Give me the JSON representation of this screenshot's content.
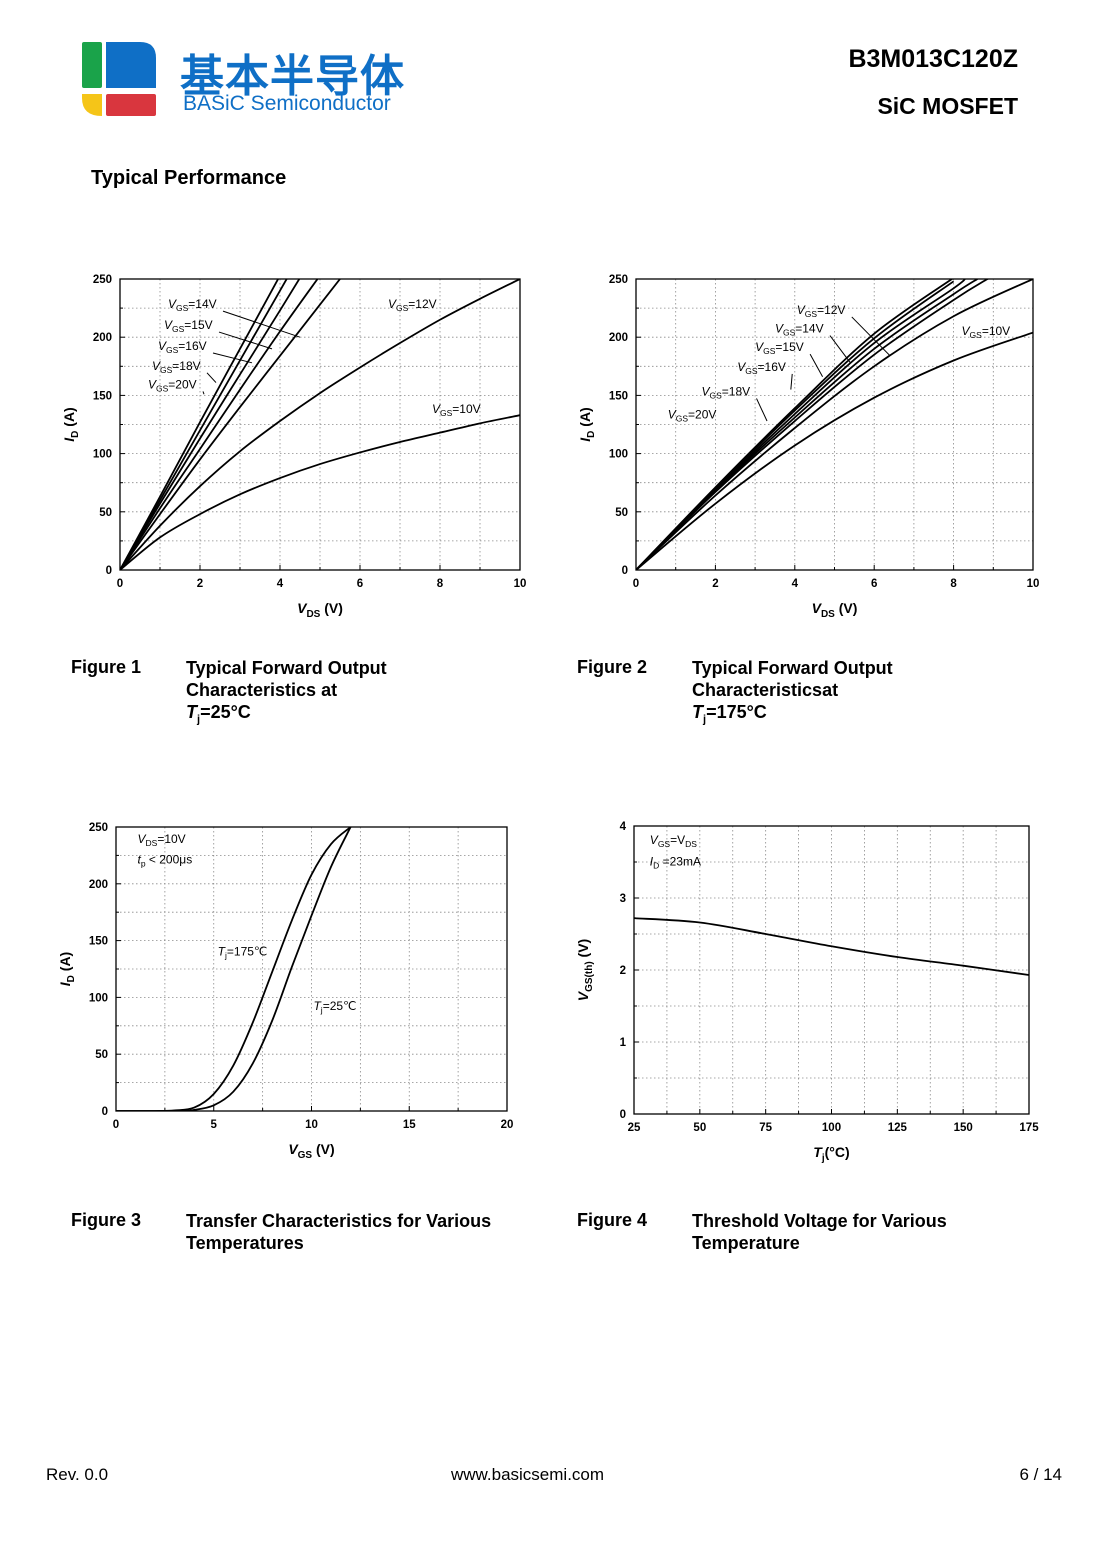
{
  "header": {
    "company_cn": "基本半导体",
    "company_en": "BASiC Semiconductor",
    "part_number": "B3M013C120Z",
    "product_type": "SiC MOSFET",
    "logo_colors": [
      "#1aa34a",
      "#0f6fc6",
      "#f5c518",
      "#d9363e"
    ]
  },
  "section_title": "Typical Performance",
  "footer": {
    "revision": "Rev. 0.0",
    "website": "www.basicsemi.com",
    "page": "6 / 14"
  },
  "figures": [
    {
      "number": "Figure 1",
      "title_lines": [
        "Typical Forward Output",
        "Characteristics at"
      ],
      "cond_var": "T",
      "cond_sub": "j",
      "cond_val": "=25°C"
    },
    {
      "number": "Figure 2",
      "title_lines": [
        "Typical Forward Output",
        "Characteristicsat"
      ],
      "cond_var": "T",
      "cond_sub": "j",
      "cond_val": "=175°C"
    },
    {
      "number": "Figure 3",
      "title_lines": [
        "Transfer Characteristics for Various",
        "Temperatures"
      ]
    },
    {
      "number": "Figure 4",
      "title_lines": [
        "Threshold Voltage for Various",
        "Temperature"
      ]
    }
  ],
  "chart_data": [
    {
      "type": "line",
      "x_label": {
        "var": "V",
        "sub": "DS",
        "unit": " (V)"
      },
      "y_label": {
        "var": "I",
        "sub": "D",
        "unit": " (A)"
      },
      "xlim": [
        0,
        10
      ],
      "ylim": [
        0,
        250
      ],
      "x_ticks": [
        0,
        2,
        4,
        6,
        8,
        10
      ],
      "y_ticks": [
        0,
        50,
        100,
        150,
        200,
        250
      ],
      "grid": true,
      "series": [
        {
          "name": "VGS=20V",
          "x": [
            0,
            1,
            2,
            3,
            4
          ],
          "y": [
            0,
            63,
            127,
            190,
            253
          ]
        },
        {
          "name": "VGS=18V",
          "x": [
            0,
            1,
            2,
            3,
            4,
            4.2
          ],
          "y": [
            0,
            60,
            120,
            180,
            240,
            252
          ]
        },
        {
          "name": "VGS=16V",
          "x": [
            0,
            1,
            2,
            3,
            4,
            4.5
          ],
          "y": [
            0,
            57,
            113,
            168,
            223,
            251
          ]
        },
        {
          "name": "VGS=15V",
          "x": [
            0,
            1,
            2,
            3,
            4,
            5
          ],
          "y": [
            0,
            53,
            104,
            155,
            205,
            253
          ]
        },
        {
          "name": "VGS=14V",
          "x": [
            0,
            1,
            2,
            3,
            4,
            5,
            5.5
          ],
          "y": [
            0,
            48,
            95,
            140,
            184,
            228,
            250
          ]
        },
        {
          "name": "VGS=12V",
          "x": [
            0,
            1,
            2,
            3,
            4,
            5,
            6,
            7,
            8,
            9,
            10
          ],
          "y": [
            0,
            38,
            72,
            102,
            128,
            152,
            174,
            195,
            215,
            233,
            250
          ]
        },
        {
          "name": "VGS=10V",
          "x": [
            0,
            1,
            2,
            3,
            4,
            5,
            6,
            7,
            8,
            9,
            10
          ],
          "y": [
            0,
            28,
            48,
            65,
            79,
            91,
            101,
            110,
            118,
            126,
            133
          ]
        }
      ],
      "annotations": [
        {
          "var": "V",
          "sub": "GS",
          "val": "=14V",
          "x": 1.2,
          "y": 225,
          "to": [
            4.5,
            200
          ]
        },
        {
          "var": "V",
          "sub": "GS",
          "val": "=15V",
          "x": 1.1,
          "y": 207,
          "to": [
            3.8,
            190
          ]
        },
        {
          "var": "V",
          "sub": "GS",
          "val": "=16V",
          "x": 0.95,
          "y": 189,
          "to": [
            3.3,
            178
          ]
        },
        {
          "var": "V",
          "sub": "GS",
          "val": "=18V",
          "x": 0.8,
          "y": 172,
          "to": [
            2.4,
            161
          ]
        },
        {
          "var": "V",
          "sub": "GS",
          "val": "=20V",
          "x": 0.7,
          "y": 156,
          "to": [
            2.1,
            151
          ]
        },
        {
          "var": "V",
          "sub": "GS",
          "val": "=12V",
          "x": 6.7,
          "y": 225
        },
        {
          "var": "V",
          "sub": "GS",
          "val": "=10V",
          "x": 7.8,
          "y": 135
        }
      ]
    },
    {
      "type": "line",
      "x_label": {
        "var": "V",
        "sub": "DS",
        "unit": " (V)"
      },
      "y_label": {
        "var": "I",
        "sub": "D",
        "unit": " (A)"
      },
      "xlim": [
        0,
        10
      ],
      "ylim": [
        0,
        250
      ],
      "x_ticks": [
        0,
        2,
        4,
        6,
        8,
        10
      ],
      "y_ticks": [
        0,
        50,
        100,
        150,
        200,
        250
      ],
      "grid": true,
      "series": [
        {
          "name": "VGS=20V",
          "x": [
            0,
            2,
            4,
            6,
            8
          ],
          "y": [
            0,
            71,
            139,
            203,
            251
          ]
        },
        {
          "name": "VGS=18V",
          "x": [
            0,
            2,
            4,
            6,
            8
          ],
          "y": [
            0,
            70,
            137,
            199,
            248
          ]
        },
        {
          "name": "VGS=16V",
          "x": [
            0,
            2,
            4,
            6,
            8,
            8.3
          ],
          "y": [
            0,
            69,
            134,
            195,
            242,
            251
          ]
        },
        {
          "name": "VGS=15V",
          "x": [
            0,
            2,
            4,
            6,
            8,
            8.6
          ],
          "y": [
            0,
            68,
            131,
            190,
            237,
            250
          ]
        },
        {
          "name": "VGS=14V",
          "x": [
            0,
            2,
            4,
            6,
            8,
            8.9
          ],
          "y": [
            0,
            67,
            128,
            185,
            232,
            251
          ]
        },
        {
          "name": "VGS=12V",
          "x": [
            0,
            2,
            4,
            6,
            8,
            10
          ],
          "y": [
            0,
            64,
            122,
            175,
            218,
            250
          ]
        },
        {
          "name": "VGS=10V",
          "x": [
            0,
            2,
            4,
            6,
            8,
            10
          ],
          "y": [
            0,
            57,
            107,
            148,
            180,
            204
          ]
        }
      ],
      "annotations": [
        {
          "var": "V",
          "sub": "GS",
          "val": "=12V",
          "x": 4.05,
          "y": 220,
          "to": [
            6.4,
            184
          ]
        },
        {
          "var": "V",
          "sub": "GS",
          "val": "=14V",
          "x": 3.5,
          "y": 204,
          "to": [
            5.4,
            178
          ]
        },
        {
          "var": "V",
          "sub": "GS",
          "val": "=15V",
          "x": 3.0,
          "y": 188,
          "to": [
            4.7,
            166
          ]
        },
        {
          "var": "V",
          "sub": "GS",
          "val": "=16V",
          "x": 2.55,
          "y": 171,
          "to": [
            3.9,
            155
          ]
        },
        {
          "var": "V",
          "sub": "GS",
          "val": "=18V",
          "x": 1.65,
          "y": 150,
          "to": [
            3.3,
            128
          ]
        },
        {
          "var": "V",
          "sub": "GS",
          "val": "=20V",
          "x": 0.8,
          "y": 130
        },
        {
          "var": "V",
          "sub": "GS",
          "val": "=10V",
          "x": 8.2,
          "y": 202
        }
      ]
    },
    {
      "type": "line",
      "x_label": {
        "var": "V",
        "sub": "GS",
        "unit": " (V)"
      },
      "y_label": {
        "var": "I",
        "sub": "D",
        "unit": " (A)"
      },
      "xlim": [
        0,
        20
      ],
      "ylim": [
        0,
        250
      ],
      "x_ticks": [
        0,
        5,
        10,
        15,
        20
      ],
      "y_ticks": [
        0,
        50,
        100,
        150,
        200,
        250
      ],
      "grid": true,
      "series": [
        {
          "name": "Tj=175°C",
          "x": [
            0,
            2,
            3,
            4,
            5,
            6,
            7,
            8,
            9,
            10,
            11,
            12
          ],
          "y": [
            0,
            0,
            0.5,
            3,
            15,
            40,
            78,
            123,
            168,
            208,
            235,
            250
          ]
        },
        {
          "name": "Tj=25°C",
          "x": [
            0,
            3,
            4,
            5,
            6,
            7,
            8,
            9,
            10,
            11,
            12
          ],
          "y": [
            0,
            0,
            1,
            5,
            17,
            42,
            80,
            127,
            172,
            215,
            250
          ]
        }
      ],
      "annotations": [
        {
          "var": "V",
          "sub": "DS",
          "val": "=10V",
          "x": 1.1,
          "y": 236
        },
        {
          "var": "t",
          "sub": "p",
          "val": " < 200μs",
          "x": 1.1,
          "y": 218
        },
        {
          "var": "T",
          "sub": "j",
          "val": "=175℃",
          "x": 5.2,
          "y": 137
        },
        {
          "var": "T",
          "sub": "j",
          "val": "=25℃",
          "x": 10.1,
          "y": 89
        }
      ]
    },
    {
      "type": "line",
      "x_label": {
        "var": "T",
        "sub": "j",
        "unit": "(°C)"
      },
      "y_label": {
        "var": "V",
        "sub": "GS(th)",
        "unit": " (V)"
      },
      "xlim": [
        25,
        175
      ],
      "ylim": [
        0,
        4
      ],
      "x_ticks": [
        25,
        50,
        75,
        100,
        125,
        150,
        175
      ],
      "y_ticks": [
        0,
        1,
        2,
        3,
        4
      ],
      "grid": true,
      "series": [
        {
          "name": "VGS(th)",
          "x": [
            25,
            50,
            75,
            100,
            125,
            150,
            175
          ],
          "y": [
            2.72,
            2.66,
            2.5,
            2.33,
            2.18,
            2.06,
            1.93
          ]
        }
      ],
      "annotations": [
        {
          "var": "V",
          "sub": "GS",
          "val": "=V",
          "sub2": "DS",
          "x": 31,
          "y": 3.75
        },
        {
          "var": "I",
          "sub": "D",
          "val": " =23mA",
          "x": 31,
          "y": 3.45
        }
      ]
    }
  ]
}
